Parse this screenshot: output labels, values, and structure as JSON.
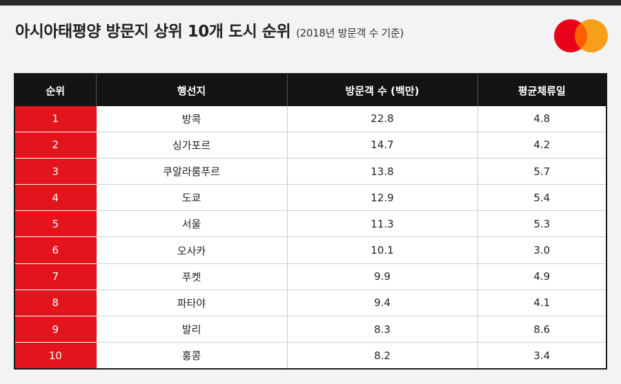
{
  "chart_data": {
    "type": "table",
    "title": "아시아태평양 방문지 상위 10개 도시 순위",
    "subtitle": "(2018년 방문객 수 기준)",
    "columns": [
      "순위",
      "행선지",
      "방문객 수 (백만)",
      "평균체류일"
    ],
    "rows": [
      [
        "1",
        "방콕",
        "22.8",
        "4.8"
      ],
      [
        "2",
        "싱가포르",
        "14.7",
        "4.2"
      ],
      [
        "3",
        "쿠알라룸푸르",
        "13.8",
        "5.7"
      ],
      [
        "4",
        "도쿄",
        "12.9",
        "5.4"
      ],
      [
        "5",
        "서울",
        "11.3",
        "5.3"
      ],
      [
        "6",
        "오사카",
        "10.1",
        "3.0"
      ],
      [
        "7",
        "푸켓",
        "9.9",
        "4.9"
      ],
      [
        "8",
        "파타야",
        "9.4",
        "4.1"
      ],
      [
        "9",
        "발리",
        "8.3",
        "8.6"
      ],
      [
        "10",
        "홍콩",
        "8.2",
        "3.4"
      ]
    ]
  },
  "colors": {
    "header_bg": "#141414",
    "rank_bg": "#e3141c",
    "logo_red": "#eb001b",
    "logo_orange": "#f79e1b",
    "logo_overlap": "#ff5f00"
  },
  "logo": {
    "icon": "mastercard-logo-icon"
  }
}
